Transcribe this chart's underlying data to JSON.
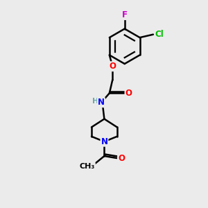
{
  "bg_color": "#ebebeb",
  "bond_color": "#000000",
  "bond_width": 1.8,
  "atom_colors": {
    "C": "#000000",
    "H": "#6aabab",
    "N": "#0000ff",
    "O": "#ff0000",
    "F": "#cc00cc",
    "Cl": "#00bb00"
  },
  "font_size": 8.5,
  "figsize": [
    3.0,
    3.0
  ],
  "dpi": 100
}
